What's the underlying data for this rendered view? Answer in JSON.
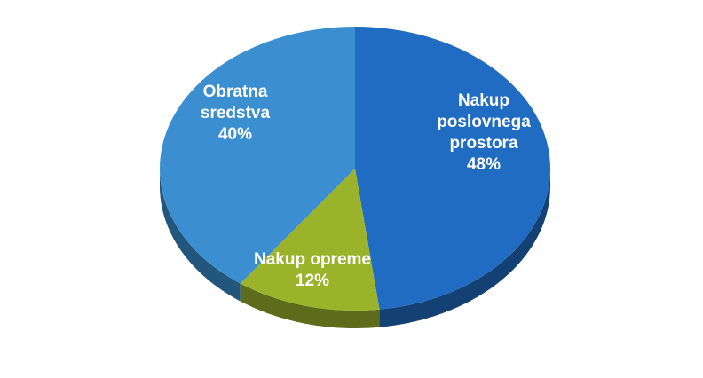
{
  "chart_data": {
    "type": "pie",
    "categories": [
      "Nakup poslovnega prostora",
      "Nakup opreme",
      "Obratna sredstva"
    ],
    "values": [
      48,
      12,
      40
    ],
    "value_labels": [
      "48%",
      "12%",
      "40%"
    ],
    "colors": [
      "#1f6cc2",
      "#9bb32b",
      "#3b8fd1"
    ]
  }
}
